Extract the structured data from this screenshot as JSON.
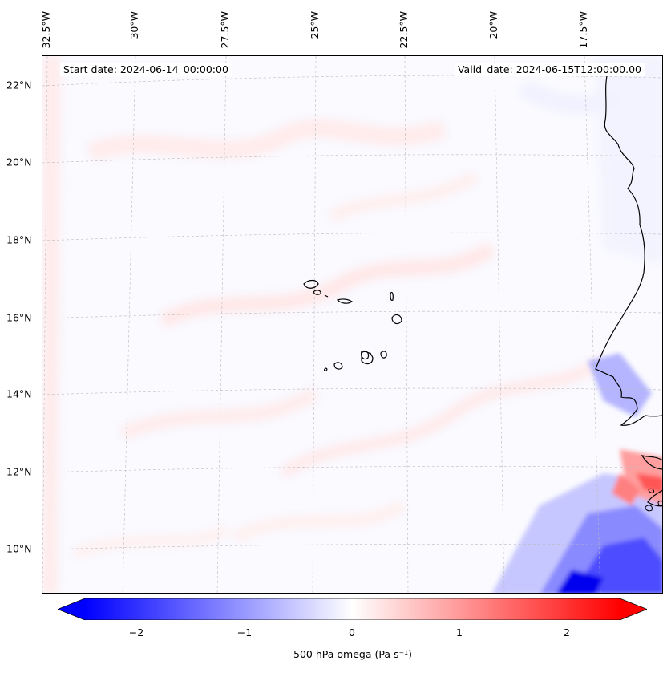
{
  "map": {
    "start_date": "Start date: 2024-06-14_00:00:00",
    "valid_date": "Valid_date: 2024-06-15T12:00:00.00",
    "background_color": "#fafaff",
    "coastline_color": "#000000",
    "lat_labels": [
      "22°N",
      "20°N",
      "18°N",
      "16°N",
      "14°N",
      "12°N",
      "10°N"
    ],
    "lon_labels": [
      "32.5°W",
      "30°W",
      "27.5°W",
      "25°W",
      "22.5°W",
      "20°W",
      "17.5°W"
    ]
  },
  "colorbar": {
    "label": "500 hPa omega (Pa s⁻¹)",
    "min": -2.6,
    "max": 2.6,
    "ticks": [
      "−2",
      "−1",
      "0",
      "1",
      "2"
    ],
    "tick_values": [
      -2,
      -1,
      0,
      1,
      2
    ],
    "colormap": "bwr",
    "neg_color": "#0000ff",
    "mid_color": "#ffffff",
    "pos_color": "#ff0000"
  }
}
